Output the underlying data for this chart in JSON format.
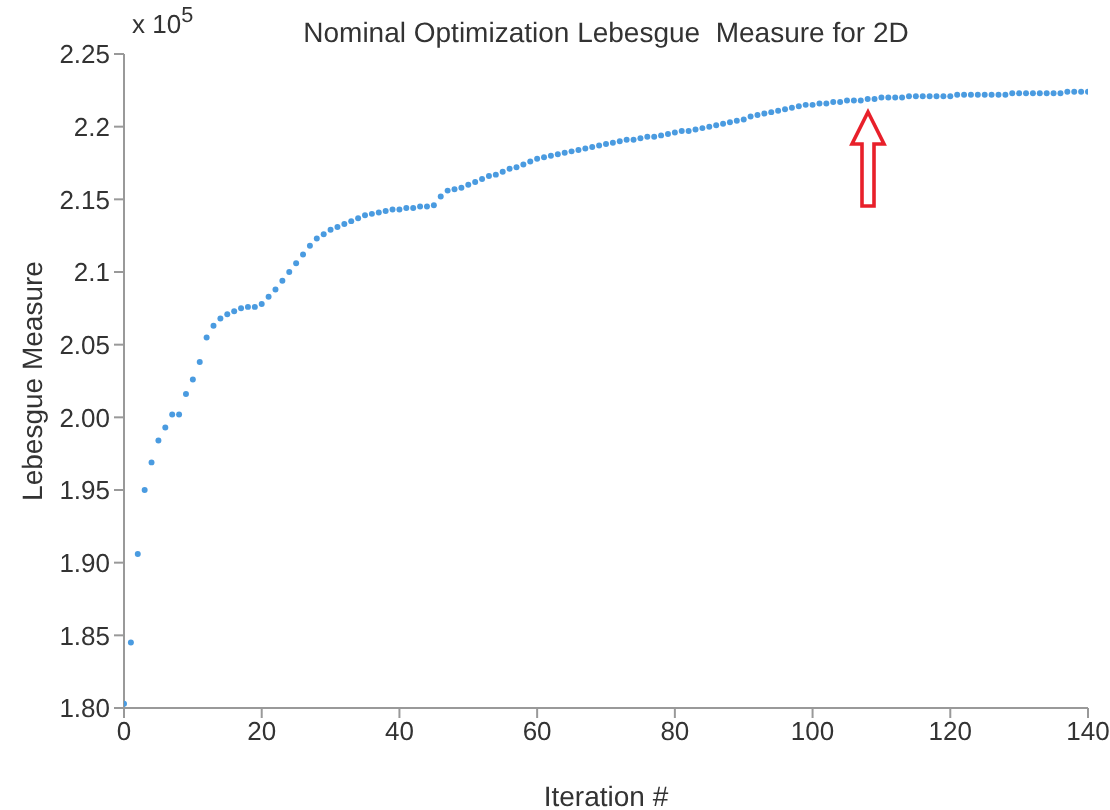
{
  "chart_data": {
    "type": "scatter",
    "title": "Nominal Optimization Lebesgue  Measure for 2D",
    "xlabel": "Iteration #",
    "ylabel": "Lebesgue Measure",
    "annotations": [
      "x 10$^{5}$"
    ],
    "marker": "circle",
    "x": [
      0,
      1,
      2,
      3,
      4,
      5,
      6,
      7,
      8,
      9,
      10,
      11,
      12,
      13,
      14,
      15,
      16,
      17,
      18,
      19,
      20,
      21,
      22,
      23,
      24,
      25,
      26,
      27,
      28,
      29,
      30,
      31,
      32,
      33,
      34,
      35,
      36,
      37,
      38,
      39,
      40,
      41,
      42,
      43,
      44,
      45,
      46,
      47,
      48,
      49,
      50,
      51,
      52,
      53,
      54,
      55,
      56,
      57,
      58,
      59,
      60,
      61,
      62,
      63,
      64,
      65,
      66,
      67,
      68,
      69,
      70,
      71,
      72,
      73,
      74,
      75,
      76,
      77,
      78,
      79,
      80,
      81,
      82,
      83,
      84,
      85,
      86,
      87,
      88,
      89,
      90,
      91,
      92,
      93,
      94,
      95,
      96,
      97,
      98,
      99,
      100,
      101,
      102,
      103,
      104,
      105,
      106,
      107,
      108,
      109,
      110,
      111,
      112,
      113,
      114,
      115,
      116,
      117,
      118,
      119,
      120,
      121,
      122,
      123,
      124,
      125,
      126,
      127,
      128,
      129,
      130,
      131,
      132,
      133,
      134,
      135,
      136,
      137,
      138,
      139,
      140
    ],
    "series": [
      {
        "color": "#4a9be0",
        "values": [
          1.803,
          1.845,
          1.906,
          1.95,
          1.969,
          1.984,
          1.993,
          2.002,
          2.002,
          2.016,
          2.026,
          2.038,
          2.055,
          2.063,
          2.068,
          2.071,
          2.073,
          2.075,
          2.076,
          2.076,
          2.078,
          2.083,
          2.088,
          2.094,
          2.1,
          2.106,
          2.112,
          2.118,
          2.123,
          2.126,
          2.129,
          2.131,
          2.133,
          2.135,
          2.137,
          2.139,
          2.14,
          2.141,
          2.142,
          2.143,
          2.143,
          2.144,
          2.144,
          2.145,
          2.145,
          2.146,
          2.152,
          2.156,
          2.157,
          2.158,
          2.16,
          2.162,
          2.164,
          2.166,
          2.167,
          2.169,
          2.171,
          2.172,
          2.174,
          2.176,
          2.178,
          2.179,
          2.18,
          2.181,
          2.182,
          2.183,
          2.184,
          2.185,
          2.186,
          2.187,
          2.188,
          2.189,
          2.19,
          2.191,
          2.191,
          2.192,
          2.193,
          2.193,
          2.194,
          2.195,
          2.196,
          2.197,
          2.197,
          2.198,
          2.199,
          2.2,
          2.201,
          2.202,
          2.203,
          2.204,
          2.205,
          2.207,
          2.208,
          2.209,
          2.21,
          2.211,
          2.212,
          2.213,
          2.214,
          2.215,
          2.215,
          2.216,
          2.216,
          2.217,
          2.217,
          2.218,
          2.218,
          2.218,
          2.219,
          2.219,
          2.22,
          2.22,
          2.22,
          2.22,
          2.221,
          2.221,
          2.221,
          2.221,
          2.221,
          2.221,
          2.221,
          2.222,
          2.222,
          2.222,
          2.222,
          2.222,
          2.222,
          2.222,
          2.222,
          2.223,
          2.223,
          2.223,
          2.223,
          2.223,
          2.223,
          2.223,
          2.223,
          2.224,
          2.224,
          2.224,
          2.224
        ]
      }
    ],
    "xlim": [
      0,
      140
    ],
    "xticks": [
      0,
      20,
      40,
      60,
      80,
      100,
      120,
      140
    ],
    "ylim": [
      1.8,
      2.25
    ],
    "yticks": [
      {
        "value": 1.8,
        "label": "1.80"
      },
      1.85,
      {
        "value": 1.9,
        "label": "1.90"
      },
      1.95,
      {
        "value": 2.0,
        "label": "2.00"
      },
      2.05,
      2.1,
      2.15,
      2.2,
      2.25
    ]
  }
}
